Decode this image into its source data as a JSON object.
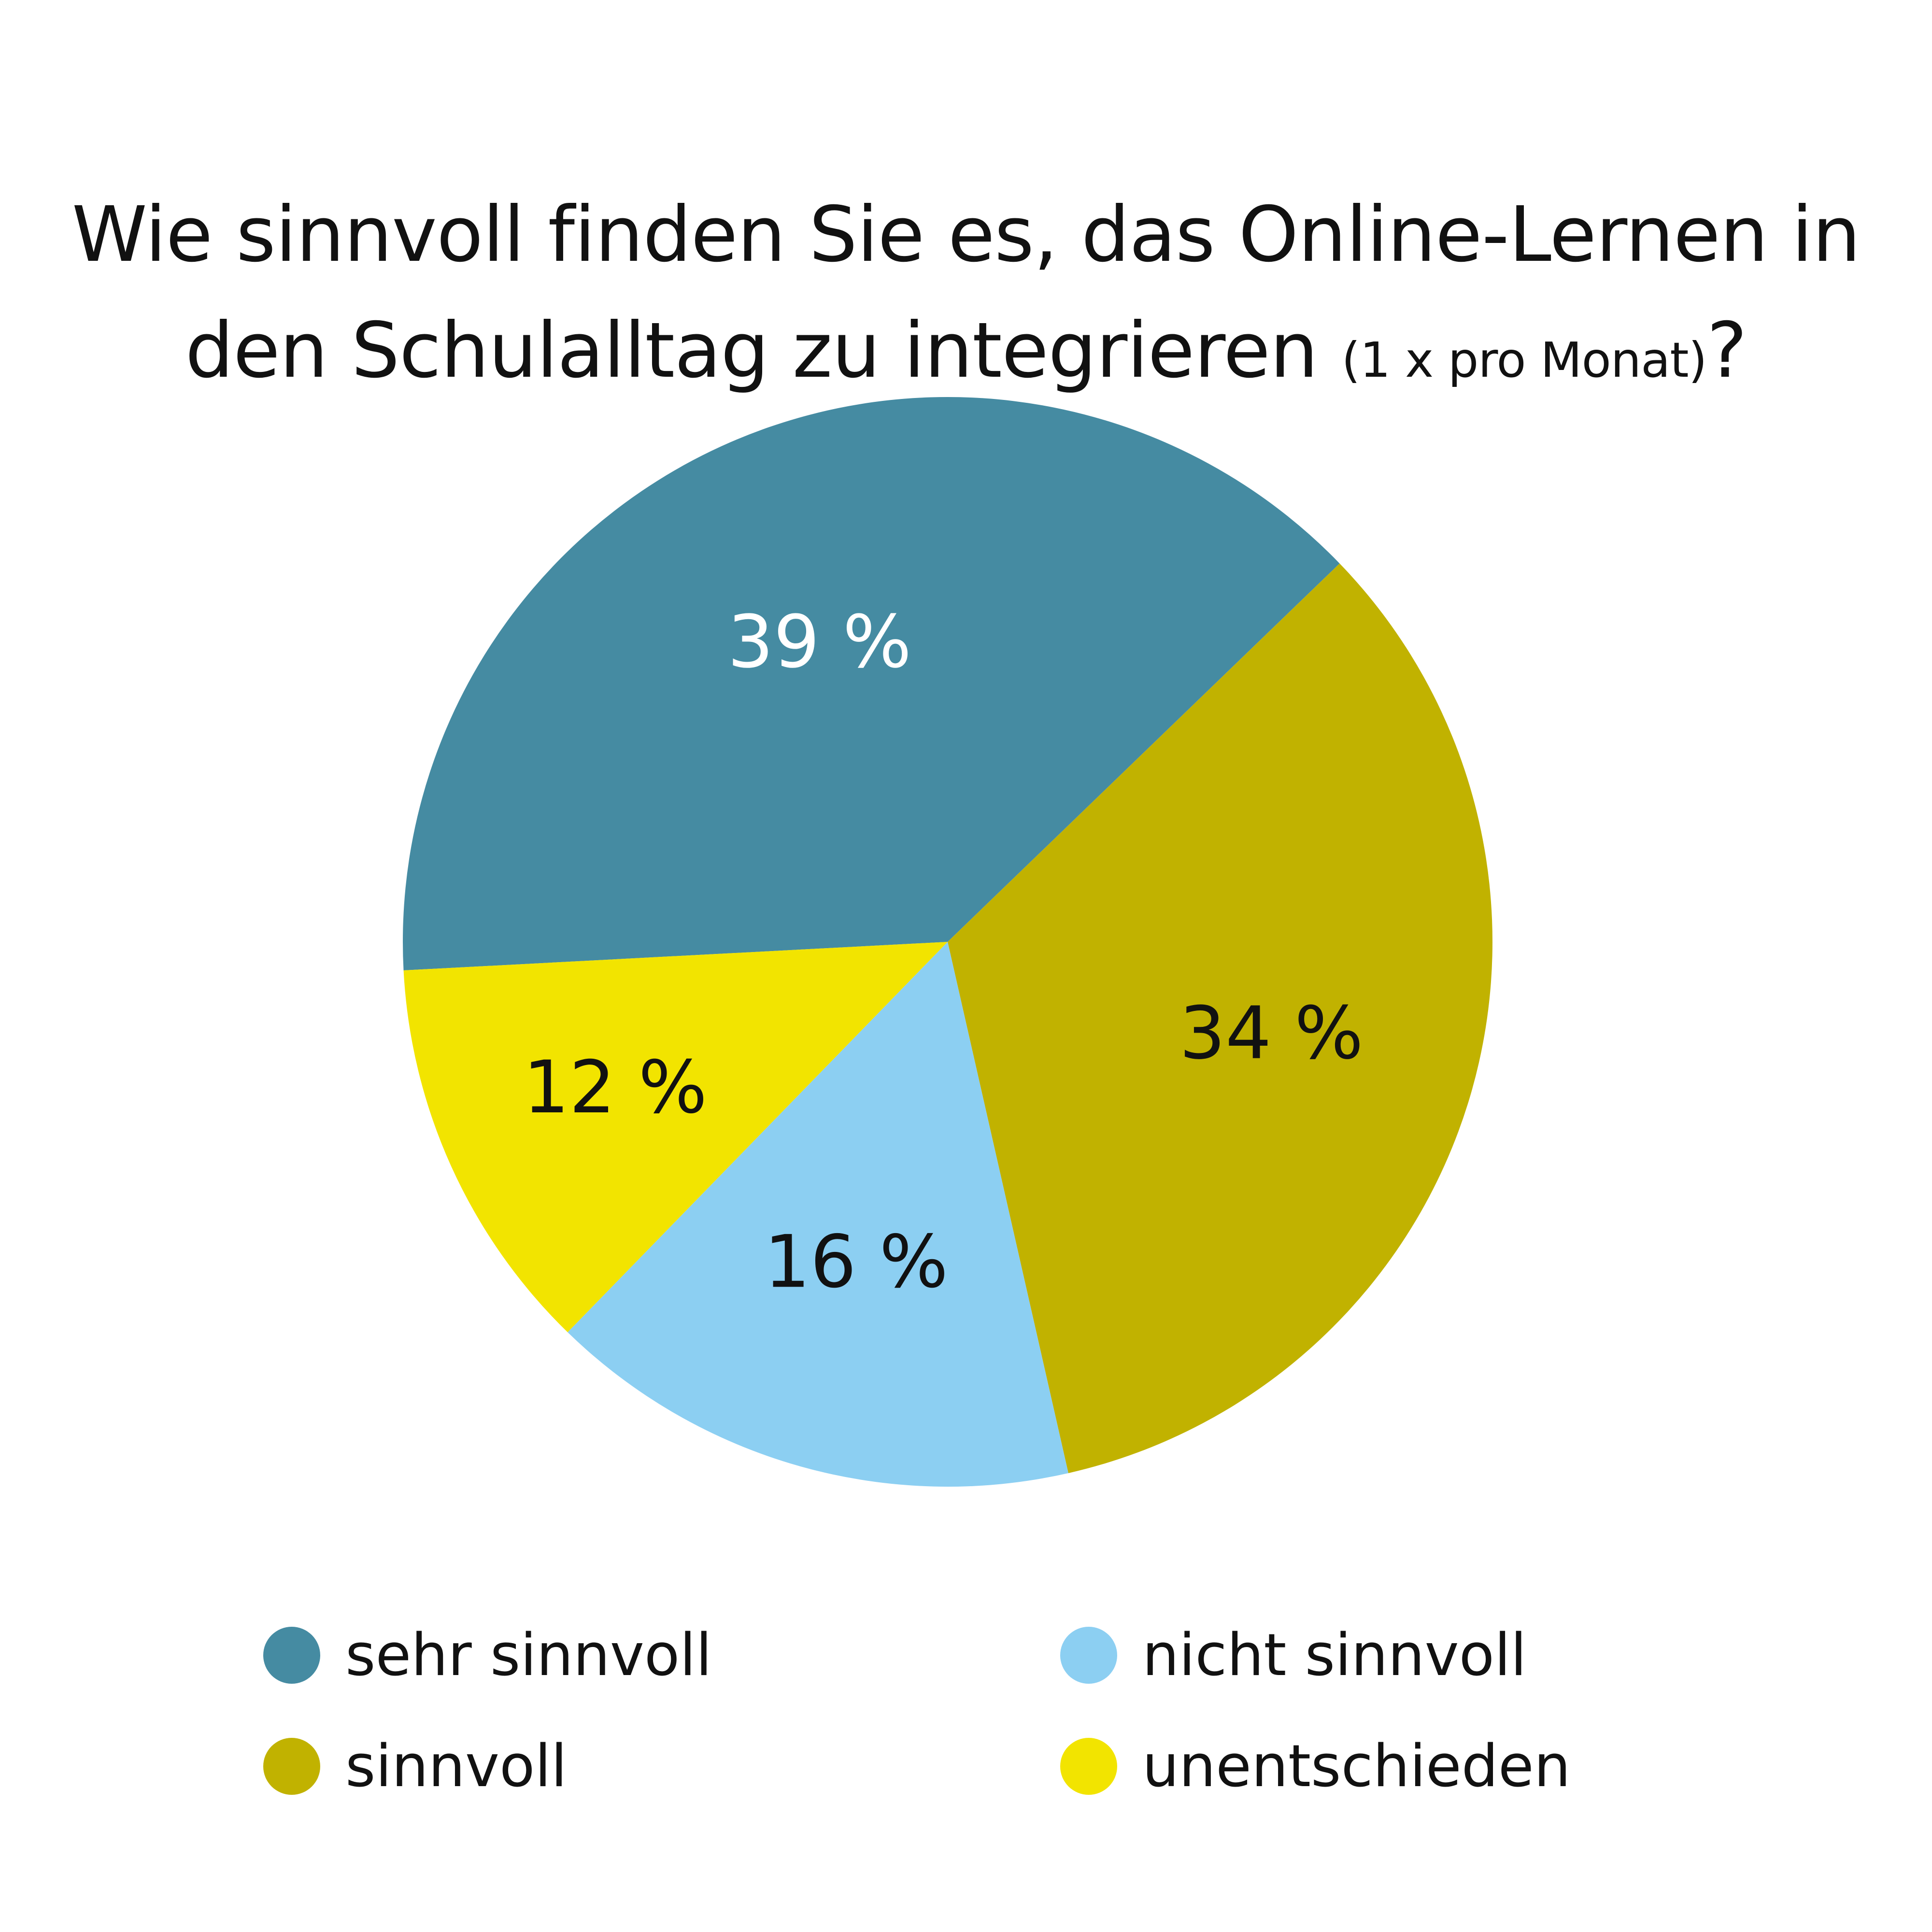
{
  "title": {
    "main": "Wie sinnvoll finden Sie es, das Online-Lernen in",
    "line2": "den Schulalltag zu integrieren",
    "small": "(1 x pro Monat)",
    "end": "?"
  },
  "colors": {
    "sehr_sinnvoll": "#458ba2",
    "sinnvoll": "#c1b200",
    "nicht_sinnvoll": "#8ccff2",
    "unentschieden": "#f2e400",
    "label_dark": "#111111",
    "label_light": "#ffffff"
  },
  "chart_data": {
    "type": "pie",
    "title": "Wie sinnvoll finden Sie es, das Online-Lernen in den Schulalltag zu integrieren (1 x pro Monat)?",
    "slices": [
      {
        "name": "sehr sinnvoll",
        "value": 39,
        "label": "39 %",
        "color": "#458ba2",
        "label_color": "#ffffff"
      },
      {
        "name": "sinnvoll",
        "value": 34,
        "label": "34 %",
        "color": "#c1b200",
        "label_color": "#111111"
      },
      {
        "name": "nicht sinnvoll",
        "value": 16,
        "label": "16 %",
        "color": "#8ccff2",
        "label_color": "#111111"
      },
      {
        "name": "unentschieden",
        "value": 12,
        "label": "12 %",
        "color": "#f2e400",
        "label_color": "#111111"
      }
    ],
    "legend": {
      "placement": "bottom",
      "entries": [
        "sehr sinnvoll",
        "nicht sinnvoll",
        "sinnvoll",
        "unentschieden"
      ]
    }
  }
}
